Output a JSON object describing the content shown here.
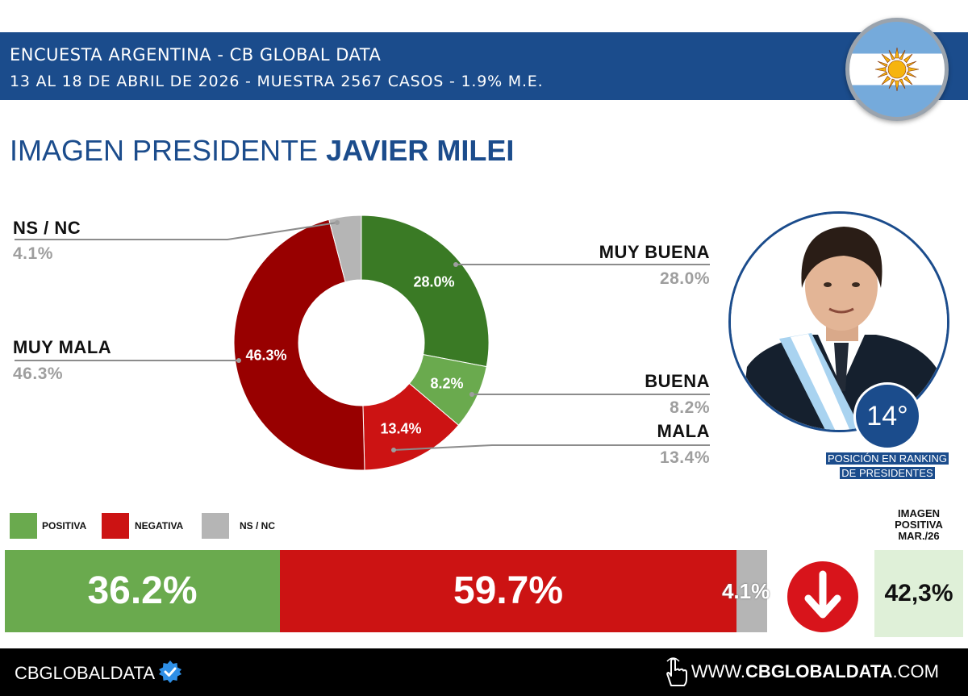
{
  "header": {
    "line1": "ENCUESTA ARGENTINA - CB GLOBAL DATA",
    "line2": "13 AL 18 DE ABRIL DE 2026 - MUESTRA 2567 CASOS - 1.9% M.E."
  },
  "title": {
    "prefix": "IMAGEN PRESIDENTE",
    "name": "JAVIER MILEI"
  },
  "chart_data": [
    {
      "type": "pie",
      "subtype": "donut",
      "title": "IMAGEN PRESIDENTE JAVIER MILEI",
      "slices": [
        {
          "name": "MUY BUENA",
          "value": 28.0,
          "label": "28.0%",
          "color": "#3a7a25"
        },
        {
          "name": "BUENA",
          "value": 8.2,
          "label": "8.2%",
          "color": "#6aaa4e"
        },
        {
          "name": "MALA",
          "value": 13.4,
          "label": "13.4%",
          "color": "#cc1313"
        },
        {
          "name": "MUY MALA",
          "value": 46.3,
          "label": "46.3%",
          "color": "#980000"
        },
        {
          "name": "NS / NC",
          "value": 4.1,
          "label": "4.1%",
          "color": "#b5b5b5"
        }
      ]
    },
    {
      "type": "bar",
      "subtype": "stacked-100",
      "categories": [
        "POSITIVA",
        "NEGATIVA",
        "NS / NC"
      ],
      "values": [
        36.2,
        59.7,
        4.1
      ],
      "labels": [
        "36.2%",
        "59.7%",
        "4.1%"
      ],
      "colors": [
        "#6aaa4e",
        "#cc1313",
        "#b5b5b5"
      ]
    }
  ],
  "callouts": {
    "ns_nc": {
      "label": "NS / NC",
      "value": "4.1%"
    },
    "muy_mala": {
      "label": "MUY MALA",
      "value": "46.3%"
    },
    "muy_buena": {
      "label": "MUY BUENA",
      "value": "28.0%"
    },
    "buena": {
      "label": "BUENA",
      "value": "8.2%"
    },
    "mala": {
      "label": "MALA",
      "value": "13.4%"
    }
  },
  "slice_labels": {
    "muy_buena": "28.0%",
    "buena": "8.2%",
    "mala": "13.4%",
    "muy_mala": "46.3%"
  },
  "legend": {
    "positiva": "POSITIVA",
    "negativa": "NEGATIVA",
    "ns_nc": "NS / NC"
  },
  "summary_bar": {
    "positiva": "36.2%",
    "negativa": "59.7%",
    "ns_nc": "4.1%"
  },
  "ranking": {
    "position": "14°",
    "caption_line1": "POSICIÓN EN RANKING",
    "caption_line2": "DE PRESIDENTES"
  },
  "previous": {
    "title_line1": "IMAGEN",
    "title_line2": "POSITIVA",
    "title_line3": "MAR./26",
    "value": "42,3%"
  },
  "trend_icon": "down-arrow-icon",
  "footer": {
    "brand": "CBGLOBALDATA",
    "url_prefix": "WWW.",
    "url_bold": "CBGLOBALDATA",
    "url_suffix": ".COM"
  }
}
